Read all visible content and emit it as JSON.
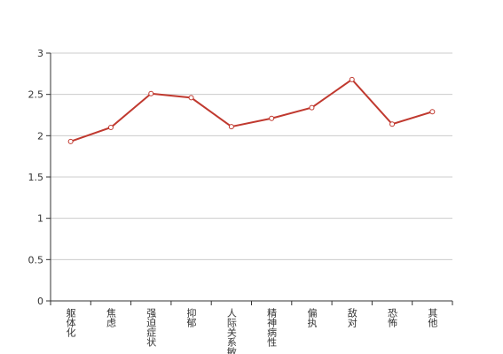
{
  "chart_data": {
    "type": "line",
    "categories": [
      "躯体化",
      "焦虑",
      "强迫症状",
      "抑郁",
      "人际关系敏感",
      "精神病性",
      "偏执",
      "敌对",
      "恐怖",
      "其他"
    ],
    "values": [
      1.93,
      2.1,
      2.51,
      2.46,
      2.11,
      2.21,
      2.34,
      2.68,
      2.14,
      2.29
    ],
    "color": "#c0392f",
    "ylim": [
      0,
      3
    ],
    "yticks": [
      0,
      0.5,
      1,
      1.5,
      2,
      2.5,
      3
    ],
    "grid": true
  }
}
